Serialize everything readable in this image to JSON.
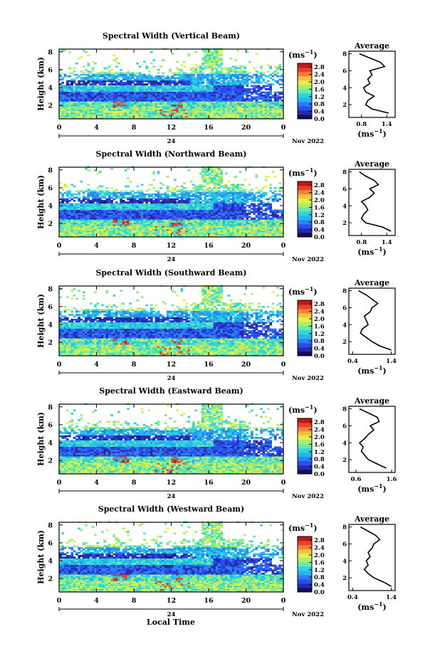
{
  "figure": {
    "xlabel": "Local Time",
    "date_label": "Nov 2022",
    "day_label": "24",
    "ylabel": "Height (km)",
    "unit_label": "(ms",
    "unit_exp": "−1",
    "avg_title": "Average"
  },
  "colormap": [
    "#101060",
    "#2a2aa8",
    "#2a4cf0",
    "#2a82f5",
    "#25b5f0",
    "#2ad8d8",
    "#6de8a6",
    "#a8ee6e",
    "#e6ee4a",
    "#f5c23a",
    "#f5823a",
    "#e8402a",
    "#c01818"
  ],
  "chart_data": [
    {
      "type": "heatmap",
      "title": "Spectral Width (Vertical Beam)",
      "x_ticks": [
        "0",
        "4",
        "8",
        "12",
        "16",
        "20",
        "0"
      ],
      "y_ticks": [
        "2",
        "4",
        "6",
        "8"
      ],
      "xlim": [
        0,
        24
      ],
      "ylim": [
        0.5,
        8.3
      ],
      "colorbar_ticks": [
        "0.0",
        "0.4",
        "0.8",
        "1.2",
        "1.6",
        "2.0",
        "2.4",
        "2.8"
      ],
      "colorbar_range": [
        0,
        3.0
      ],
      "profile": {
        "title": "Average",
        "xticks": [
          "0.8",
          "1.4"
        ],
        "xlim": [
          0.5,
          1.6
        ],
        "height": [
          1.0,
          1.5,
          2.0,
          2.5,
          3.0,
          3.5,
          4.0,
          4.5,
          5.0,
          5.5,
          6.0,
          6.5,
          7.0,
          7.5,
          8.0
        ],
        "value": [
          1.45,
          1.05,
          0.9,
          0.95,
          1.1,
          0.9,
          0.85,
          1.0,
          0.95,
          1.05,
          1.0,
          1.35,
          1.25,
          1.0,
          0.75
        ]
      }
    },
    {
      "type": "heatmap",
      "title": "Spectral Width (Northward Beam)",
      "x_ticks": [
        "0",
        "4",
        "8",
        "12",
        "16",
        "20",
        "0"
      ],
      "y_ticks": [
        "2",
        "4",
        "6",
        "8"
      ],
      "xlim": [
        0,
        24
      ],
      "ylim": [
        0.5,
        8.3
      ],
      "colorbar_ticks": [
        "0.0",
        "0.4",
        "0.8",
        "1.2",
        "1.6",
        "2.0",
        "2.4",
        "2.8"
      ],
      "colorbar_range": [
        0,
        3.0
      ],
      "profile": {
        "title": "Average",
        "xticks": [
          "0.8",
          "1.4"
        ],
        "xlim": [
          0.5,
          1.6
        ],
        "height": [
          1.0,
          1.5,
          2.0,
          2.5,
          3.0,
          3.5,
          4.0,
          4.5,
          5.0,
          5.5,
          6.0,
          6.5,
          7.0,
          7.5,
          8.0
        ],
        "value": [
          1.5,
          1.3,
          0.9,
          0.8,
          0.85,
          0.95,
          0.9,
          0.8,
          1.0,
          1.1,
          1.0,
          1.2,
          1.1,
          0.9,
          0.75
        ]
      }
    },
    {
      "type": "heatmap",
      "title": "Spectral Width (Southward Beam)",
      "x_ticks": [
        "0",
        "4",
        "8",
        "12",
        "16",
        "20",
        "0"
      ],
      "y_ticks": [
        "2",
        "4",
        "6",
        "8"
      ],
      "xlim": [
        0,
        24
      ],
      "ylim": [
        0.5,
        8.3
      ],
      "colorbar_ticks": [
        "0.0",
        "0.4",
        "0.8",
        "1.2",
        "1.6",
        "2.0",
        "2.4",
        "2.8"
      ],
      "colorbar_range": [
        0,
        3.0
      ],
      "profile": {
        "title": "Average",
        "xticks": [
          "0.4",
          "1.4"
        ],
        "xlim": [
          0.3,
          1.5
        ],
        "height": [
          1.0,
          1.5,
          2.0,
          2.5,
          3.0,
          3.5,
          4.0,
          4.5,
          5.0,
          5.5,
          6.0,
          6.5,
          7.0,
          7.5,
          8.0
        ],
        "value": [
          1.4,
          1.1,
          0.9,
          0.75,
          0.6,
          0.65,
          0.8,
          0.75,
          0.7,
          0.85,
          0.9,
          1.05,
          0.9,
          0.75,
          0.55
        ]
      }
    },
    {
      "type": "heatmap",
      "title": "Spectral Width (Eastward Beam)",
      "x_ticks": [
        "0",
        "4",
        "8",
        "12",
        "16",
        "20",
        "0"
      ],
      "y_ticks": [
        "2",
        "4",
        "6",
        "8"
      ],
      "xlim": [
        0,
        24
      ],
      "ylim": [
        0.5,
        8.3
      ],
      "colorbar_ticks": [
        "0.0",
        "0.4",
        "0.8",
        "1.2",
        "1.6",
        "2.0",
        "2.4",
        "2.8"
      ],
      "colorbar_range": [
        0,
        3.0
      ],
      "profile": {
        "title": "Average",
        "xticks": [
          "0.6",
          "1.6"
        ],
        "xlim": [
          0.4,
          1.7
        ],
        "height": [
          1.0,
          1.5,
          2.0,
          2.5,
          3.0,
          3.5,
          4.0,
          4.5,
          5.0,
          5.5,
          6.0,
          6.5,
          7.0,
          7.5,
          8.0
        ],
        "value": [
          1.45,
          1.2,
          0.95,
          0.85,
          0.75,
          0.8,
          0.7,
          0.85,
          0.95,
          1.1,
          1.0,
          1.25,
          1.2,
          0.95,
          0.7
        ]
      }
    },
    {
      "type": "heatmap",
      "title": "Spectral Width (Westward Beam)",
      "x_ticks": [
        "0",
        "4",
        "8",
        "12",
        "16",
        "20",
        "0"
      ],
      "y_ticks": [
        "2",
        "4",
        "6",
        "8"
      ],
      "xlim": [
        0,
        24
      ],
      "ylim": [
        0.5,
        8.3
      ],
      "colorbar_ticks": [
        "0.0",
        "0.4",
        "0.8",
        "1.2",
        "1.6",
        "2.0",
        "2.4",
        "2.8"
      ],
      "colorbar_range": [
        0,
        3.0
      ],
      "profile": {
        "title": "Average",
        "xticks": [
          "0.4",
          "1.4"
        ],
        "xlim": [
          0.3,
          1.5
        ],
        "height": [
          1.0,
          1.5,
          2.0,
          2.5,
          3.0,
          3.5,
          4.0,
          4.5,
          5.0,
          5.5,
          6.0,
          6.5,
          7.0,
          7.5,
          8.0
        ],
        "value": [
          1.4,
          1.2,
          0.95,
          0.8,
          0.7,
          0.8,
          0.75,
          0.85,
          0.8,
          0.9,
          0.95,
          1.1,
          1.0,
          0.8,
          0.6
        ]
      }
    }
  ]
}
